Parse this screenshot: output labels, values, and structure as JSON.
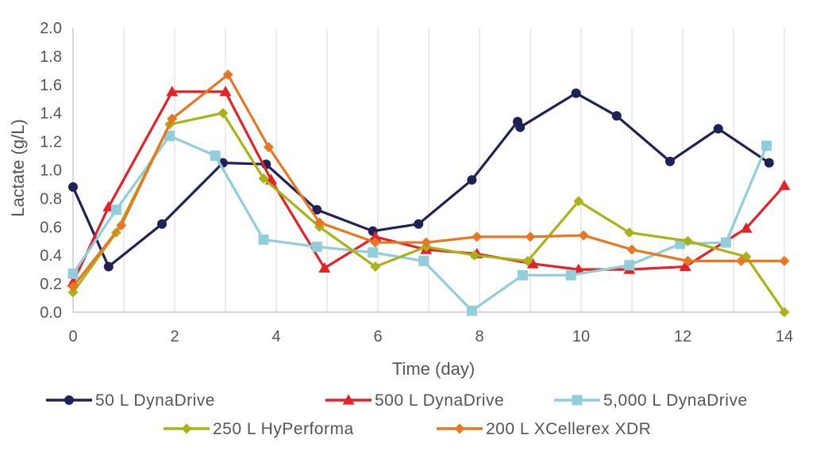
{
  "chart_data": {
    "type": "line",
    "title": "",
    "xlabel": "Time (day)",
    "ylabel": "Lactate (g/L)",
    "xlim": [
      0,
      14
    ],
    "ylim": [
      0,
      2.0
    ],
    "x_ticks": [
      "0",
      "2",
      "4",
      "6",
      "8",
      "10",
      "12",
      "14"
    ],
    "y_ticks": [
      "0.0",
      "0.2",
      "0.4",
      "0.6",
      "0.8",
      "1.0",
      "1.2",
      "1.4",
      "1.6",
      "1.8",
      "2.0"
    ],
    "grid": "vertical",
    "legend_position": "bottom",
    "series": [
      {
        "name": "50 L DynaDrive",
        "color": "#1f2157",
        "marker": "circle",
        "x": [
          0,
          0.7,
          1.75,
          2.95,
          3.8,
          4.8,
          5.9,
          6.8,
          7.85,
          8.75,
          8.8,
          9.9,
          10.7,
          11.75,
          12.7,
          13.7
        ],
        "y": [
          0.88,
          0.32,
          0.62,
          1.05,
          1.04,
          0.72,
          0.57,
          0.62,
          0.93,
          1.34,
          1.3,
          1.54,
          1.38,
          1.06,
          1.29,
          1.05
        ]
      },
      {
        "name": "500 L DynaDrive",
        "color": "#e2232a",
        "marker": "triangle",
        "x": [
          0,
          0.7,
          1.95,
          3.0,
          3.9,
          4.95,
          5.95,
          6.95,
          7.95,
          9.05,
          9.95,
          10.95,
          12.05,
          13.25,
          14.0
        ],
        "y": [
          0.21,
          0.74,
          1.55,
          1.55,
          0.93,
          0.31,
          0.53,
          0.44,
          0.41,
          0.34,
          0.3,
          0.3,
          0.32,
          0.59,
          0.89
        ]
      },
      {
        "name": "5,000 L DynaDrive",
        "color": "#92cddb",
        "marker": "square",
        "x": [
          0,
          0.85,
          1.9,
          2.8,
          3.75,
          4.8,
          5.9,
          6.9,
          7.85,
          8.85,
          9.8,
          10.95,
          11.95,
          12.85,
          13.65
        ],
        "y": [
          0.27,
          0.72,
          1.24,
          1.1,
          0.51,
          0.46,
          0.42,
          0.36,
          0.01,
          0.26,
          0.26,
          0.33,
          0.48,
          0.49,
          1.17
        ]
      },
      {
        "name": "250 L HyPerforma",
        "color": "#a8b317",
        "marker": "diamond",
        "x": [
          0,
          0.85,
          1.9,
          2.95,
          3.75,
          4.85,
          5.95,
          6.95,
          7.9,
          8.95,
          9.95,
          10.95,
          12.1,
          13.25,
          14.0
        ],
        "y": [
          0.14,
          0.56,
          1.32,
          1.4,
          0.94,
          0.6,
          0.32,
          0.46,
          0.4,
          0.36,
          0.78,
          0.56,
          0.5,
          0.39,
          0.0
        ]
      },
      {
        "name": "200 L XCellerex XDR",
        "color": "#e87722",
        "marker": "diamond",
        "x": [
          0,
          0.95,
          1.95,
          3.05,
          3.85,
          4.85,
          5.95,
          6.95,
          7.95,
          9.0,
          10.05,
          11.0,
          12.1,
          13.15,
          14.0
        ],
        "y": [
          0.18,
          0.61,
          1.36,
          1.67,
          1.16,
          0.63,
          0.49,
          0.49,
          0.53,
          0.53,
          0.54,
          0.44,
          0.36,
          0.36,
          0.36
        ]
      }
    ]
  }
}
